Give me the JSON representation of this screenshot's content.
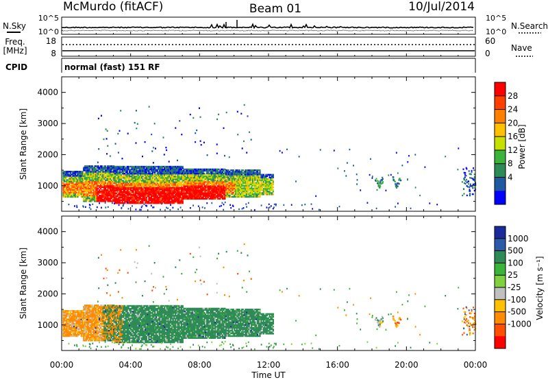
{
  "header": {
    "station": "McMurdo (fitACF)",
    "beam": "Beam 01",
    "date": "10/Jul/2014"
  },
  "strip1": {
    "left_label": "N.Sky",
    "right_label": "N.Search",
    "left_ticks": [
      "10^5",
      "10^0"
    ],
    "right_ticks": [
      "10^5",
      "10^0"
    ]
  },
  "strip2": {
    "left_label_top": "Freq.",
    "left_label_bottom": "[MHz]",
    "right_label": "Nave",
    "left_ticks": [
      "18",
      "8"
    ],
    "right_ticks": [
      "60",
      "0"
    ]
  },
  "strip3": {
    "left_label": "CPID",
    "cpid_text": "normal (fast) 151 RF"
  },
  "colorbars": {
    "power": {
      "label": "Power [dB]",
      "ticks": [
        "28",
        "24",
        "20",
        "16",
        "12",
        "8",
        "4"
      ],
      "colors": [
        "#ff0000",
        "#ff4000",
        "#ff8000",
        "#ffc000",
        "#c8e000",
        "#3cb43c",
        "#2e8b57",
        "#1e5aa0",
        "#0000ff"
      ]
    },
    "velocity": {
      "label": "Velocity [m s⁻¹]",
      "ticks": [
        "1000",
        "500",
        "100",
        "25",
        "-25",
        "-100",
        "-500",
        "-1000"
      ],
      "colors": [
        "#1a2a9a",
        "#2a5aa8",
        "#2e8b57",
        "#3cb43c",
        "#80d040",
        "#c0c0c0",
        "#ffc000",
        "#ff8c00",
        "#ff5000",
        "#ff0000"
      ]
    }
  },
  "chart_data": [
    {
      "type": "heatmap",
      "title": "Power",
      "xlabel": "Time UT",
      "ylabel": "Slant Range [km]",
      "x_ticks": [
        "00:00",
        "04:00",
        "08:00",
        "12:00",
        "16:00",
        "20:00",
        "00:00"
      ],
      "y_ticks": [
        "1000",
        "2000",
        "3000",
        "4000"
      ],
      "xlim_hours": [
        0,
        24
      ],
      "ylim_km": [
        180,
        4500
      ],
      "colorbar_label": "Power [dB]"
    },
    {
      "type": "heatmap",
      "title": "Velocity",
      "xlabel": "Time UT",
      "ylabel": "Slant Range [km]",
      "x_ticks": [
        "00:00",
        "04:00",
        "08:00",
        "12:00",
        "16:00",
        "20:00",
        "00:00"
      ],
      "y_ticks": [
        "1000",
        "2000",
        "3000",
        "4000"
      ],
      "xlim_hours": [
        0,
        24
      ],
      "ylim_km": [
        180,
        4500
      ],
      "colorbar_label": "Velocity [m s⁻¹]"
    }
  ]
}
